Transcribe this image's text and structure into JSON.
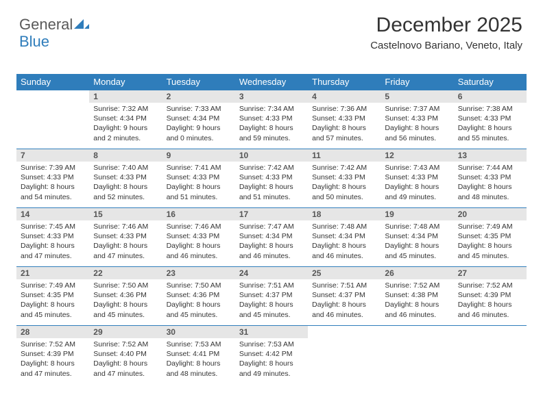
{
  "brand": {
    "part1": "General",
    "part2": "Blue",
    "color_primary": "#2f7dbb",
    "color_text": "#595959"
  },
  "header": {
    "title": "December 2025",
    "location": "Castelnovo Bariano, Veneto, Italy",
    "title_fontsize": 30,
    "location_fontsize": 15,
    "text_color": "#333333"
  },
  "calendar": {
    "type": "table",
    "header_bg": "#2f7dbb",
    "header_fg": "#ffffff",
    "daynum_bg": "#e6e6e6",
    "daynum_fg": "#555555",
    "border_color": "#2f7dbb",
    "body_fontsize": 10.5,
    "columns": [
      "Sunday",
      "Monday",
      "Tuesday",
      "Wednesday",
      "Thursday",
      "Friday",
      "Saturday"
    ],
    "weeks": [
      [
        {
          "day": "",
          "lines": []
        },
        {
          "day": "1",
          "lines": [
            "Sunrise: 7:32 AM",
            "Sunset: 4:34 PM",
            "Daylight: 9 hours",
            "and 2 minutes."
          ]
        },
        {
          "day": "2",
          "lines": [
            "Sunrise: 7:33 AM",
            "Sunset: 4:34 PM",
            "Daylight: 9 hours",
            "and 0 minutes."
          ]
        },
        {
          "day": "3",
          "lines": [
            "Sunrise: 7:34 AM",
            "Sunset: 4:33 PM",
            "Daylight: 8 hours",
            "and 59 minutes."
          ]
        },
        {
          "day": "4",
          "lines": [
            "Sunrise: 7:36 AM",
            "Sunset: 4:33 PM",
            "Daylight: 8 hours",
            "and 57 minutes."
          ]
        },
        {
          "day": "5",
          "lines": [
            "Sunrise: 7:37 AM",
            "Sunset: 4:33 PM",
            "Daylight: 8 hours",
            "and 56 minutes."
          ]
        },
        {
          "day": "6",
          "lines": [
            "Sunrise: 7:38 AM",
            "Sunset: 4:33 PM",
            "Daylight: 8 hours",
            "and 55 minutes."
          ]
        }
      ],
      [
        {
          "day": "7",
          "lines": [
            "Sunrise: 7:39 AM",
            "Sunset: 4:33 PM",
            "Daylight: 8 hours",
            "and 54 minutes."
          ]
        },
        {
          "day": "8",
          "lines": [
            "Sunrise: 7:40 AM",
            "Sunset: 4:33 PM",
            "Daylight: 8 hours",
            "and 52 minutes."
          ]
        },
        {
          "day": "9",
          "lines": [
            "Sunrise: 7:41 AM",
            "Sunset: 4:33 PM",
            "Daylight: 8 hours",
            "and 51 minutes."
          ]
        },
        {
          "day": "10",
          "lines": [
            "Sunrise: 7:42 AM",
            "Sunset: 4:33 PM",
            "Daylight: 8 hours",
            "and 51 minutes."
          ]
        },
        {
          "day": "11",
          "lines": [
            "Sunrise: 7:42 AM",
            "Sunset: 4:33 PM",
            "Daylight: 8 hours",
            "and 50 minutes."
          ]
        },
        {
          "day": "12",
          "lines": [
            "Sunrise: 7:43 AM",
            "Sunset: 4:33 PM",
            "Daylight: 8 hours",
            "and 49 minutes."
          ]
        },
        {
          "day": "13",
          "lines": [
            "Sunrise: 7:44 AM",
            "Sunset: 4:33 PM",
            "Daylight: 8 hours",
            "and 48 minutes."
          ]
        }
      ],
      [
        {
          "day": "14",
          "lines": [
            "Sunrise: 7:45 AM",
            "Sunset: 4:33 PM",
            "Daylight: 8 hours",
            "and 47 minutes."
          ]
        },
        {
          "day": "15",
          "lines": [
            "Sunrise: 7:46 AM",
            "Sunset: 4:33 PM",
            "Daylight: 8 hours",
            "and 47 minutes."
          ]
        },
        {
          "day": "16",
          "lines": [
            "Sunrise: 7:46 AM",
            "Sunset: 4:33 PM",
            "Daylight: 8 hours",
            "and 46 minutes."
          ]
        },
        {
          "day": "17",
          "lines": [
            "Sunrise: 7:47 AM",
            "Sunset: 4:34 PM",
            "Daylight: 8 hours",
            "and 46 minutes."
          ]
        },
        {
          "day": "18",
          "lines": [
            "Sunrise: 7:48 AM",
            "Sunset: 4:34 PM",
            "Daylight: 8 hours",
            "and 46 minutes."
          ]
        },
        {
          "day": "19",
          "lines": [
            "Sunrise: 7:48 AM",
            "Sunset: 4:34 PM",
            "Daylight: 8 hours",
            "and 45 minutes."
          ]
        },
        {
          "day": "20",
          "lines": [
            "Sunrise: 7:49 AM",
            "Sunset: 4:35 PM",
            "Daylight: 8 hours",
            "and 45 minutes."
          ]
        }
      ],
      [
        {
          "day": "21",
          "lines": [
            "Sunrise: 7:49 AM",
            "Sunset: 4:35 PM",
            "Daylight: 8 hours",
            "and 45 minutes."
          ]
        },
        {
          "day": "22",
          "lines": [
            "Sunrise: 7:50 AM",
            "Sunset: 4:36 PM",
            "Daylight: 8 hours",
            "and 45 minutes."
          ]
        },
        {
          "day": "23",
          "lines": [
            "Sunrise: 7:50 AM",
            "Sunset: 4:36 PM",
            "Daylight: 8 hours",
            "and 45 minutes."
          ]
        },
        {
          "day": "24",
          "lines": [
            "Sunrise: 7:51 AM",
            "Sunset: 4:37 PM",
            "Daylight: 8 hours",
            "and 45 minutes."
          ]
        },
        {
          "day": "25",
          "lines": [
            "Sunrise: 7:51 AM",
            "Sunset: 4:37 PM",
            "Daylight: 8 hours",
            "and 46 minutes."
          ]
        },
        {
          "day": "26",
          "lines": [
            "Sunrise: 7:52 AM",
            "Sunset: 4:38 PM",
            "Daylight: 8 hours",
            "and 46 minutes."
          ]
        },
        {
          "day": "27",
          "lines": [
            "Sunrise: 7:52 AM",
            "Sunset: 4:39 PM",
            "Daylight: 8 hours",
            "and 46 minutes."
          ]
        }
      ],
      [
        {
          "day": "28",
          "lines": [
            "Sunrise: 7:52 AM",
            "Sunset: 4:39 PM",
            "Daylight: 8 hours",
            "and 47 minutes."
          ]
        },
        {
          "day": "29",
          "lines": [
            "Sunrise: 7:52 AM",
            "Sunset: 4:40 PM",
            "Daylight: 8 hours",
            "and 47 minutes."
          ]
        },
        {
          "day": "30",
          "lines": [
            "Sunrise: 7:53 AM",
            "Sunset: 4:41 PM",
            "Daylight: 8 hours",
            "and 48 minutes."
          ]
        },
        {
          "day": "31",
          "lines": [
            "Sunrise: 7:53 AM",
            "Sunset: 4:42 PM",
            "Daylight: 8 hours",
            "and 49 minutes."
          ]
        },
        {
          "day": "",
          "lines": []
        },
        {
          "day": "",
          "lines": []
        },
        {
          "day": "",
          "lines": []
        }
      ]
    ]
  }
}
